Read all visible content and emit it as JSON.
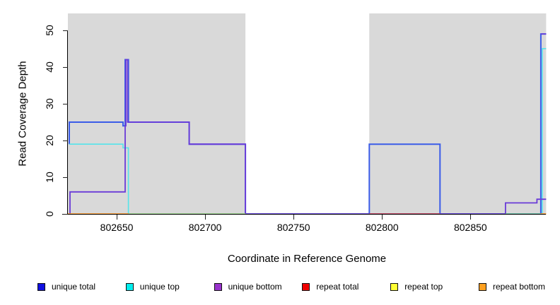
{
  "chart_data": {
    "type": "line",
    "subtype": "step-coverage",
    "title": "",
    "xlabel": "Coordinate in Reference Genome",
    "ylabel": "Read Coverage Depth",
    "xlim": [
      802622.4,
      802892.8
    ],
    "ylim": [
      0,
      54.6
    ],
    "xticks": [
      802650,
      802700,
      802750,
      802800,
      802850
    ],
    "yticks": [
      0,
      10,
      20,
      30,
      40,
      50
    ],
    "grid": "off",
    "shaded_region_color": "#D9D9D9",
    "shaded_regions": [
      {
        "from": 802622.4,
        "to": 802722.8
      },
      {
        "from": 802792.8,
        "to": 802892.8
      }
    ],
    "series": [
      {
        "name": "unique total",
        "color": "#3B5CE8",
        "width": 2,
        "points": [
          [
            802623.2,
            19
          ],
          [
            802623.2,
            25
          ],
          [
            802653.6,
            25
          ],
          [
            802653.6,
            24
          ],
          [
            802654.8,
            24
          ],
          [
            802654.8,
            42
          ],
          [
            802656.6,
            42
          ],
          [
            802656.6,
            25
          ],
          [
            802691,
            25
          ],
          [
            802691,
            19
          ],
          [
            802722.8,
            19
          ],
          [
            802722.8,
            0
          ],
          [
            802792.8,
            0
          ],
          [
            802792.8,
            19
          ],
          [
            802832.8,
            19
          ],
          [
            802832.8,
            0
          ],
          [
            802889.8,
            0
          ],
          [
            802889.8,
            49
          ],
          [
            802892.8,
            49
          ]
        ]
      },
      {
        "name": "unique top",
        "color": "#55E4EA",
        "width": 1.6,
        "points": [
          [
            802623.2,
            19
          ],
          [
            802653.6,
            19
          ],
          [
            802653.6,
            18
          ],
          [
            802656.6,
            18
          ],
          [
            802656.6,
            0
          ],
          [
            802890.6,
            0
          ],
          [
            802890.6,
            45
          ],
          [
            802892.8,
            45
          ]
        ]
      },
      {
        "name": "unique bottom",
        "color": "#6A3BD8",
        "width": 1.8,
        "points": [
          [
            802623.6,
            0
          ],
          [
            802623.6,
            6
          ],
          [
            802654.8,
            6
          ],
          [
            802654.8,
            24
          ],
          [
            802655.2,
            24
          ],
          [
            802655.2,
            42
          ],
          [
            802656.2,
            42
          ],
          [
            802656.2,
            25
          ],
          [
            802691,
            25
          ],
          [
            802691,
            19
          ],
          [
            802722.8,
            19
          ],
          [
            802722.8,
            0
          ],
          [
            802869.8,
            0
          ],
          [
            802869.8,
            3
          ],
          [
            802887.6,
            3
          ],
          [
            802887.6,
            4
          ],
          [
            802892.8,
            4
          ]
        ]
      },
      {
        "name": "repeat total",
        "color": "#DD4444",
        "width": 1.6,
        "points": [
          [
            802622.4,
            0
          ],
          [
            802892.8,
            0
          ]
        ],
        "render_segments": [
          [
            [
              802792.8,
              0
            ],
            [
              802832.8,
              0
            ]
          ]
        ]
      },
      {
        "name": "repeat top",
        "color": "#F0F0A8",
        "width": 1.8,
        "points": [
          [
            802622.4,
            0
          ],
          [
            802892.8,
            0
          ]
        ],
        "render_segments": [
          [
            [
              802656.8,
              0
            ],
            [
              802722.8,
              0
            ]
          ]
        ]
      },
      {
        "name": "repeat bottom",
        "color": "#FF9728",
        "width": 1.8,
        "points": [
          [
            802622.4,
            0
          ],
          [
            802892.8,
            0
          ]
        ],
        "render_segments": [
          [
            [
              802622.4,
              0
            ],
            [
              802656.8,
              0
            ]
          ],
          [
            [
              802889.6,
              0
            ],
            [
              802892.8,
              0
            ]
          ]
        ]
      }
    ],
    "zero_overlap_highlights": [
      {
        "note": "cyan+yellow overlap at zero renders green",
        "color": "#7CC87C",
        "width": 1.3,
        "segments": [
          [
            [
              802656.8,
              0
            ],
            [
              802722.8,
              0
            ]
          ],
          [
            [
              802869.8,
              0
            ],
            [
              802889.6,
              0
            ]
          ]
        ]
      },
      {
        "note": "purple cap over blue at right-edge spike",
        "color": "#6A3BD8",
        "width": 1.6,
        "segments": [
          [
            [
              802889.8,
              49
            ],
            [
              802892.8,
              49
            ]
          ]
        ]
      }
    ]
  },
  "axes": {
    "x_title": "Coordinate in Reference Genome",
    "y_title": "Read Coverage Depth"
  },
  "legend": {
    "items": [
      {
        "label": "unique total",
        "color": "#1010E0"
      },
      {
        "label": "unique top",
        "color": "#00EEEE"
      },
      {
        "label": "unique bottom",
        "color": "#9933CC"
      },
      {
        "label": "repeat total",
        "color": "#EE0000"
      },
      {
        "label": "repeat top",
        "color": "#FFFF33"
      },
      {
        "label": "repeat bottom",
        "color": "#FFA020"
      }
    ]
  }
}
